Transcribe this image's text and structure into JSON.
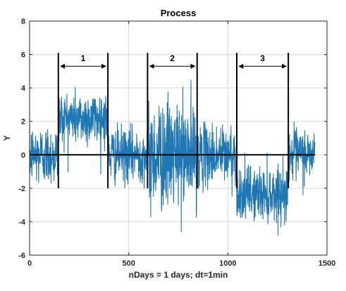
{
  "chart_data": {
    "type": "line",
    "title": "Process",
    "xlabel": "nDays = 1 days;  dt=1min",
    "ylabel": "Y",
    "xlim": [
      0,
      1500
    ],
    "ylim": [
      -6,
      8
    ],
    "xticks": [
      0,
      500,
      1000,
      1500
    ],
    "yticks": [
      -6,
      -4,
      -2,
      0,
      2,
      4,
      6,
      8
    ],
    "grid": true,
    "colors": {
      "series": "#1f77b4",
      "annotation": "#000000",
      "grid": "#d9d9d9"
    },
    "series": [
      {
        "n_points": 1440,
        "segment_means": [
          {
            "x_range": [
              0,
              145
            ],
            "mean": 0
          },
          {
            "x_range": [
              145,
              395
            ],
            "mean": 2.2
          },
          {
            "x_range": [
              395,
              595
            ],
            "mean": 0
          },
          {
            "x_range": [
              595,
              845
            ],
            "mean": 0
          },
          {
            "x_range": [
              845,
              1045
            ],
            "mean": 0
          },
          {
            "x_range": [
              1045,
              1305
            ],
            "mean": -2.3
          },
          {
            "x_range": [
              1305,
              1440
            ],
            "mean": 0
          }
        ],
        "noise_std": [
          {
            "x_range": [
              0,
              145
            ],
            "std": 0.9
          },
          {
            "x_range": [
              145,
              395
            ],
            "std": 0.8
          },
          {
            "x_range": [
              395,
              595
            ],
            "std": 0.8
          },
          {
            "x_range": [
              595,
              845
            ],
            "std": 1.6
          },
          {
            "x_range": [
              845,
              1045
            ],
            "std": 0.9
          },
          {
            "x_range": [
              1045,
              1305
            ],
            "std": 0.8
          },
          {
            "x_range": [
              1305,
              1440
            ],
            "std": 0.8
          }
        ]
      }
    ],
    "reference_line": {
      "y": 0,
      "x_range": [
        0,
        1440
      ]
    },
    "annotations": [
      {
        "label": "1",
        "x_start": 145,
        "x_end": 395,
        "y_top": 6.1,
        "y_bottom": -2.0,
        "arrow_y": 5.3
      },
      {
        "label": "2",
        "x_start": 595,
        "x_end": 845,
        "y_top": 6.1,
        "y_bottom": -2.0,
        "arrow_y": 5.3
      },
      {
        "label": "3",
        "x_start": 1045,
        "x_end": 1305,
        "y_top": 6.1,
        "y_bottom": -2.0,
        "arrow_y": 5.3
      }
    ]
  }
}
